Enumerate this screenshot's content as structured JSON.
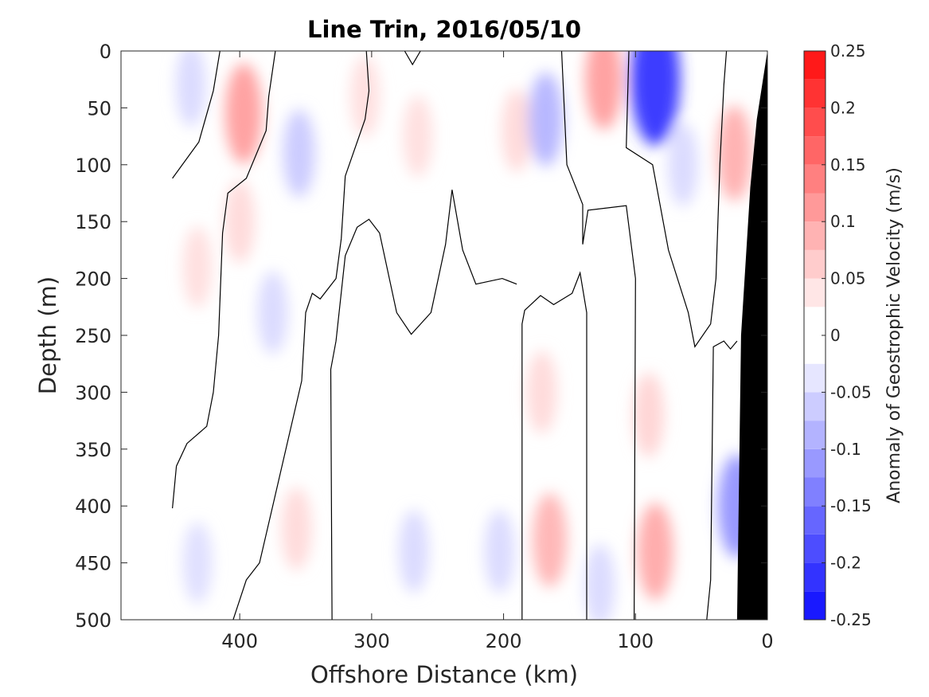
{
  "chart_data": {
    "type": "contour",
    "title": "Line Trin, 2016/05/10",
    "xlabel": "Offshore Distance (km)",
    "ylabel": "Depth (m)",
    "colorbar_label": "Anomaly of Geostrophic Velocity (m/s)",
    "xlim": [
      490,
      0
    ],
    "ylim": [
      0,
      500
    ],
    "x_reversed": true,
    "y_reversed": true,
    "x_ticks": [
      400,
      300,
      200,
      100,
      0
    ],
    "y_ticks": [
      0,
      50,
      100,
      150,
      200,
      250,
      300,
      350,
      400,
      450,
      500
    ],
    "colorbar_range": [
      -0.25,
      0.25
    ],
    "colorbar_levels": [
      -0.25,
      -0.225,
      -0.2,
      -0.175,
      -0.15,
      -0.125,
      -0.1,
      -0.075,
      -0.05,
      -0.025,
      0,
      0.025,
      0.05,
      0.075,
      0.1,
      0.125,
      0.15,
      0.175,
      0.2,
      0.225,
      0.25
    ],
    "colorbar_ticks": [
      "0.25",
      "0.2",
      "0.15",
      "0.1",
      "0.05",
      "0",
      "-0.05",
      "-0.1",
      "-0.15",
      "-0.2",
      "-0.25"
    ],
    "colors": {
      "positive_max": "#ff0000",
      "negative_max": "#0000ff",
      "zero": "#ffffff",
      "zero_contour": "#000000",
      "bottom_mask": "#000000"
    },
    "anomaly_cells": [
      {
        "x": 437,
        "depth": 30,
        "value": -0.035
      },
      {
        "x": 397,
        "depth": 55,
        "value": 0.09
      },
      {
        "x": 400,
        "depth": 150,
        "value": 0.035
      },
      {
        "x": 432,
        "depth": 190,
        "value": 0.03
      },
      {
        "x": 355,
        "depth": 90,
        "value": -0.05
      },
      {
        "x": 375,
        "depth": 230,
        "value": -0.035
      },
      {
        "x": 305,
        "depth": 40,
        "value": 0.03
      },
      {
        "x": 265,
        "depth": 75,
        "value": 0.03
      },
      {
        "x": 190,
        "depth": 70,
        "value": 0.035
      },
      {
        "x": 168,
        "depth": 60,
        "value": -0.07
      },
      {
        "x": 124,
        "depth": 25,
        "value": 0.09
      },
      {
        "x": 85,
        "depth": 25,
        "value": -0.19
      },
      {
        "x": 64,
        "depth": 100,
        "value": -0.035
      },
      {
        "x": 25,
        "depth": 90,
        "value": 0.075
      },
      {
        "x": 90,
        "depth": 320,
        "value": 0.04
      },
      {
        "x": 85,
        "depth": 440,
        "value": 0.08
      },
      {
        "x": 165,
        "depth": 430,
        "value": 0.07
      },
      {
        "x": 171,
        "depth": 300,
        "value": 0.035
      },
      {
        "x": 127,
        "depth": 470,
        "value": -0.035
      },
      {
        "x": 203,
        "depth": 440,
        "value": -0.035
      },
      {
        "x": 268,
        "depth": 440,
        "value": -0.035
      },
      {
        "x": 357,
        "depth": 420,
        "value": 0.035
      },
      {
        "x": 432,
        "depth": 450,
        "value": -0.03
      },
      {
        "x": 23,
        "depth": 400,
        "value": -0.1
      }
    ],
    "zero_contours": [
      [
        [
          451,
          112
        ],
        [
          431,
          80
        ],
        [
          420,
          35
        ],
        [
          415,
          0
        ]
      ],
      [
        [
          451,
          402
        ],
        [
          448,
          365
        ],
        [
          440,
          345
        ],
        [
          425,
          330
        ],
        [
          420,
          300
        ],
        [
          416,
          250
        ],
        [
          413,
          160
        ],
        [
          409,
          125
        ],
        [
          395,
          112
        ],
        [
          380,
          70
        ],
        [
          378,
          40
        ],
        [
          373,
          0
        ]
      ],
      [
        [
          405,
          500
        ],
        [
          395,
          465
        ],
        [
          385,
          450
        ],
        [
          375,
          400
        ],
        [
          362,
          335
        ],
        [
          353,
          290
        ],
        [
          350,
          230
        ],
        [
          345,
          213
        ],
        [
          339,
          218
        ],
        [
          327,
          200
        ],
        [
          323,
          165
        ],
        [
          320,
          110
        ],
        [
          305,
          60
        ],
        [
          302,
          35
        ],
        [
          304,
          0
        ]
      ],
      [
        [
          330,
          500
        ],
        [
          331,
          280
        ],
        [
          327,
          255
        ],
        [
          320,
          180
        ],
        [
          311,
          155
        ],
        [
          302,
          148
        ],
        [
          294,
          160
        ],
        [
          281,
          230
        ],
        [
          270,
          249
        ],
        [
          255,
          230
        ],
        [
          244,
          170
        ],
        [
          239,
          122
        ],
        [
          231,
          175
        ],
        [
          221,
          205
        ],
        [
          201,
          200
        ],
        [
          190,
          205
        ]
      ],
      [
        [
          275,
          0
        ],
        [
          269,
          12
        ],
        [
          263,
          0
        ]
      ],
      [
        [
          186,
          500
        ],
        [
          186,
          240
        ],
        [
          184,
          228
        ],
        [
          172,
          215
        ],
        [
          162,
          223
        ],
        [
          148,
          213
        ],
        [
          142,
          195
        ],
        [
          137,
          230
        ],
        [
          137,
          500
        ]
      ],
      [
        [
          156,
          0
        ],
        [
          152,
          100
        ],
        [
          140,
          135
        ],
        [
          140,
          170
        ],
        [
          136,
          140
        ],
        [
          107,
          136
        ],
        [
          100,
          200
        ],
        [
          101,
          500
        ]
      ],
      [
        [
          105,
          0
        ],
        [
          107,
          85
        ],
        [
          87,
          100
        ],
        [
          75,
          175
        ],
        [
          60,
          230
        ],
        [
          55,
          260
        ],
        [
          43,
          240
        ],
        [
          39,
          200
        ],
        [
          36,
          100
        ],
        [
          33,
          30
        ],
        [
          31,
          0
        ]
      ],
      [
        [
          46,
          500
        ],
        [
          43,
          465
        ],
        [
          41,
          260
        ],
        [
          33,
          255
        ],
        [
          28,
          262
        ],
        [
          23,
          255
        ]
      ]
    ],
    "bathymetry": [
      [
        490,
        500
      ],
      [
        0,
        500
      ],
      [
        0,
        0
      ],
      [
        8,
        60
      ],
      [
        13,
        120
      ],
      [
        20,
        250
      ],
      [
        23,
        500
      ]
    ]
  }
}
